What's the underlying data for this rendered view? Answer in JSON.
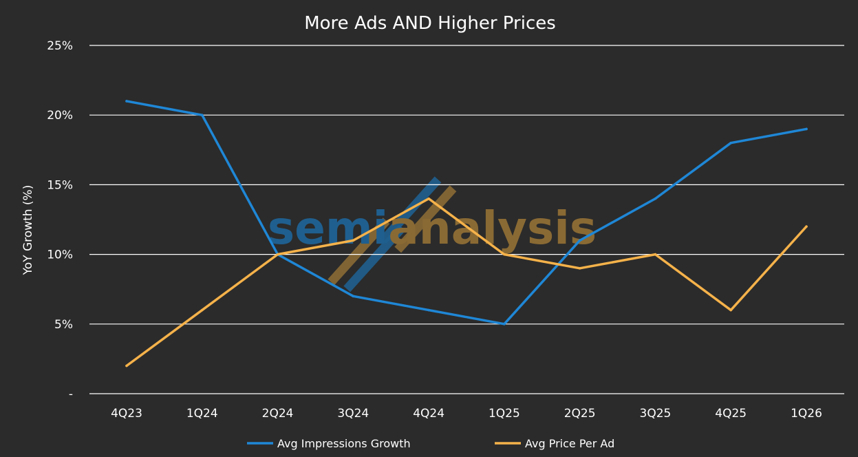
{
  "chart_data": {
    "type": "line",
    "title": "More Ads AND Higher Prices",
    "xlabel": "",
    "ylabel": "YoY Growth (%)",
    "categories": [
      "4Q23",
      "1Q24",
      "2Q24",
      "3Q24",
      "4Q24",
      "1Q25",
      "2Q25",
      "3Q25",
      "4Q25",
      "1Q26"
    ],
    "ylim": [
      0,
      25
    ],
    "yticks": [
      0,
      5,
      10,
      15,
      20,
      25
    ],
    "ytick_labels": [
      "-",
      "5%",
      "10%",
      "15%",
      "20%",
      "25%"
    ],
    "grid": true,
    "legend_placement": "bottom",
    "series": [
      {
        "name": "Avg Impressions Growth",
        "color": "#1f87d6",
        "values": [
          21,
          20,
          10,
          7,
          6,
          5,
          11,
          14,
          18,
          19
        ]
      },
      {
        "name": "Avg Price Per Ad",
        "color": "#f5b24a",
        "values": [
          2,
          6,
          10,
          11,
          14,
          10,
          9,
          10,
          6,
          12
        ]
      }
    ]
  },
  "watermark": {
    "text_blue": "semi",
    "text_orange": "analysis",
    "blue": "#1f5f8f",
    "orange": "#8a6a34"
  },
  "theme": {
    "background": "#2b2b2b",
    "text": "#ffffff",
    "grid": "#ffffff"
  }
}
